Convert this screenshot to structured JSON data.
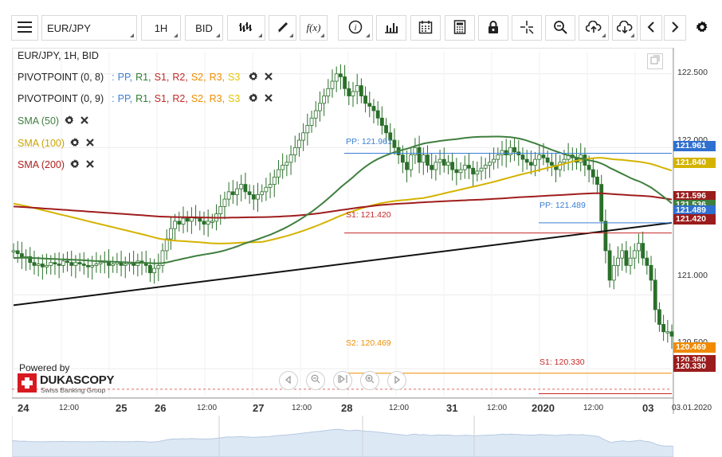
{
  "toolbar": {
    "menu_icon": "hamburger-icon",
    "instrument": "EUR/JPY",
    "timeframe": "1H",
    "price_side": "BID",
    "tools": [
      "chart-type-icon",
      "draw-icon",
      "function-icon",
      "info-icon",
      "bar-chart-icon",
      "calendar-icon",
      "calculator-icon",
      "lock-icon",
      "crosshair-icon",
      "zoom-icon",
      "upload-icon",
      "download-icon",
      "chevron-left-icon",
      "chevron-right-icon",
      "gear-icon"
    ]
  },
  "legend": {
    "title": "EUR/JPY, 1H, BID",
    "rows": [
      {
        "name": "PIVOTPOINT (0, 8)",
        "sep": ":",
        "levels": [
          {
            "t": "PP,",
            "c": "#3a7fd5"
          },
          {
            "t": "R1,",
            "c": "#2e7d32"
          },
          {
            "t": "S1,",
            "c": "#c62828"
          },
          {
            "t": "R2,",
            "c": "#c62828"
          },
          {
            "t": "S2,",
            "c": "#ef8c00"
          },
          {
            "t": "R3,",
            "c": "#ef8c00"
          },
          {
            "t": "S3",
            "c": "#e3c400"
          }
        ]
      },
      {
        "name": "PIVOTPOINT (0, 9)",
        "sep": ":",
        "levels": [
          {
            "t": "PP,",
            "c": "#3a7fd5"
          },
          {
            "t": "R1,",
            "c": "#2e7d32"
          },
          {
            "t": "S1,",
            "c": "#c62828"
          },
          {
            "t": "R2,",
            "c": "#c62828"
          },
          {
            "t": "S2,",
            "c": "#ef8c00"
          },
          {
            "t": "R3,",
            "c": "#ef8c00"
          },
          {
            "t": "S3",
            "c": "#e3c400"
          }
        ]
      },
      {
        "name": "SMA (50)",
        "color": "#3f7f3f"
      },
      {
        "name": "SMA (100)",
        "color": "#c9a400"
      },
      {
        "name": "SMA (200)",
        "color": "#b02020"
      }
    ]
  },
  "y_axis": {
    "labels": [
      "122.500",
      "122.000",
      "121.000",
      "120.500"
    ]
  },
  "price_tags": [
    {
      "text": "121.961",
      "bg": "#2f6fd0"
    },
    {
      "text": "121.840",
      "bg": "#d4b300"
    },
    {
      "text": "121.596",
      "bg": "#9b1c1c"
    },
    {
      "text": "121.536",
      "bg": "#3f7f3f"
    },
    {
      "text": "121.489",
      "bg": "#2f6fd0"
    },
    {
      "text": "121.420",
      "bg": "#9b1c1c"
    },
    {
      "text": "120.469",
      "bg": "#f08a00"
    },
    {
      "text": "120.360",
      "bg": "#9b1c1c"
    },
    {
      "text": "120.330",
      "bg": "#9b1c1c"
    }
  ],
  "level_labels": [
    {
      "text": "PP: 121.961",
      "c": "#3a7fd5"
    },
    {
      "text": "PP: 121.489",
      "c": "#3a7fd5"
    },
    {
      "text": "S1: 121.420",
      "c": "#c62828"
    },
    {
      "text": "S2: 120.469",
      "c": "#ef8c00"
    },
    {
      "text": "S1: 120.330",
      "c": "#c62828"
    }
  ],
  "x_axis": {
    "labels": [
      "24",
      "12:00",
      "25",
      "26",
      "12:00",
      "27",
      "12:00",
      "28",
      "12:00",
      "31",
      "12:00",
      "2020",
      "12:00",
      "03",
      "03.01.2020"
    ],
    "bold": [
      true,
      false,
      true,
      true,
      false,
      true,
      false,
      true,
      false,
      true,
      false,
      true,
      false,
      true,
      false
    ]
  },
  "branding": {
    "powered_by": "Powered by",
    "brand": "DUKASCOPY",
    "tagline": "Swiss Banking Group"
  },
  "nav": [
    "nav-prev-icon",
    "zoom-out-icon",
    "fit-icon",
    "zoom-in-icon",
    "nav-next-icon"
  ],
  "chart_data": {
    "type": "line",
    "instrument": "EUR/JPY",
    "interval": "1H",
    "ylim": [
      120.3,
      122.65
    ],
    "y_ticks": [
      120.5,
      121.0,
      122.0,
      122.5
    ],
    "close": [
      121.3,
      121.28,
      121.25,
      121.26,
      121.22,
      121.2,
      121.21,
      121.19,
      121.2,
      121.22,
      121.21,
      121.2,
      121.23,
      121.22,
      121.2,
      121.22,
      121.21,
      121.2,
      121.19,
      121.2,
      121.21,
      121.22,
      121.23,
      121.2,
      121.21,
      121.22,
      121.2,
      121.21,
      121.22,
      121.2,
      121.23,
      121.22,
      121.2,
      121.15,
      121.18,
      121.2,
      121.3,
      121.38,
      121.45,
      121.5,
      121.48,
      121.52,
      121.5,
      121.53,
      121.52,
      121.5,
      121.48,
      121.5,
      121.5,
      121.55,
      121.6,
      121.65,
      121.7,
      121.68,
      121.72,
      121.75,
      121.7,
      121.68,
      121.65,
      121.68,
      121.7,
      121.73,
      121.75,
      121.8,
      121.85,
      121.88,
      121.9,
      121.95,
      122.0,
      122.05,
      122.1,
      122.15,
      122.2,
      122.25,
      122.3,
      122.35,
      122.4,
      122.45,
      122.5,
      122.48,
      122.4,
      122.35,
      122.38,
      122.42,
      122.35,
      122.3,
      122.28,
      122.25,
      122.2,
      122.15,
      122.1,
      122.05,
      122.0,
      121.95,
      121.9,
      121.85,
      121.95,
      122.0,
      121.9,
      121.95,
      121.88,
      121.85,
      121.9,
      121.92,
      121.88,
      121.9,
      121.85,
      121.83,
      121.85,
      121.88,
      121.86,
      121.82,
      121.84,
      121.86,
      121.88,
      121.9,
      121.92,
      121.95,
      121.98,
      121.95,
      122.0,
      121.97,
      121.95,
      121.92,
      121.9,
      121.88,
      121.92,
      121.95,
      121.93,
      121.9,
      121.88,
      121.85,
      121.9,
      121.92,
      121.95,
      121.93,
      121.9,
      121.95,
      121.88,
      121.85,
      121.8,
      121.75,
      121.5,
      121.3,
      121.1,
      121.2,
      121.25,
      121.3,
      121.2,
      121.25,
      121.3,
      121.35,
      121.25,
      121.2,
      121.1,
      120.9,
      120.8,
      120.75,
      120.75,
      120.72
    ],
    "sma50_label": "SMA (50)",
    "sma100_label": "SMA (100)",
    "sma200_label": "SMA (200)",
    "last_values": {
      "sma50": 121.536,
      "sma100": 121.84,
      "sma200": 121.596
    },
    "pivot_levels": [
      {
        "name": "PP",
        "value": 121.961
      },
      {
        "name": "PP",
        "value": 121.489
      },
      {
        "name": "S1",
        "value": 121.42
      },
      {
        "name": "S2",
        "value": 120.469
      },
      {
        "name": "S1",
        "value": 120.33
      }
    ],
    "trendline": {
      "from": [
        0,
        120.93
      ],
      "to": [
        1,
        121.49
      ]
    }
  }
}
